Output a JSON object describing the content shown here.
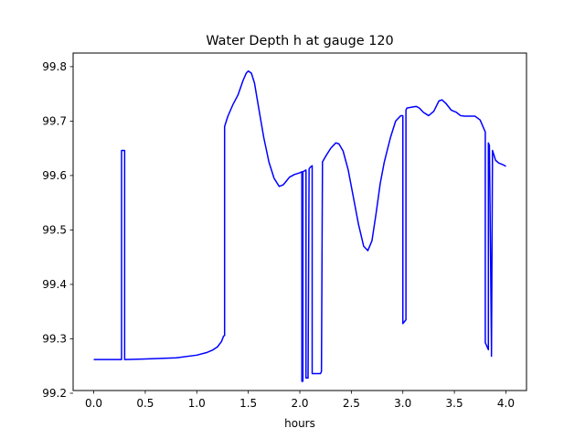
{
  "chart_data": {
    "type": "line",
    "title": "Water Depth h at gauge 120",
    "xlabel": "hours",
    "ylabel": "",
    "xlim": [
      -0.2,
      4.2
    ],
    "ylim": [
      99.205,
      99.825
    ],
    "xticks": [
      0.0,
      0.5,
      1.0,
      1.5,
      2.0,
      2.5,
      3.0,
      3.5,
      4.0
    ],
    "xtick_labels": [
      "0.0",
      "0.5",
      "1.0",
      "1.5",
      "2.0",
      "2.5",
      "3.0",
      "3.5",
      "4.0"
    ],
    "yticks": [
      99.2,
      99.3,
      99.4,
      99.5,
      99.6,
      99.7,
      99.8
    ],
    "ytick_labels": [
      "99.2",
      "99.3",
      "99.4",
      "99.5",
      "99.6",
      "99.7",
      "99.8"
    ],
    "grid": false,
    "series": [
      {
        "color": "#0000ff",
        "x": [
          0.0,
          0.26,
          0.27,
          0.27,
          0.3,
          0.3,
          0.31,
          0.5,
          0.8,
          1.0,
          1.1,
          1.15,
          1.2,
          1.24,
          1.26,
          1.27,
          1.27,
          1.3,
          1.35,
          1.4,
          1.45,
          1.48,
          1.5,
          1.53,
          1.56,
          1.6,
          1.65,
          1.7,
          1.75,
          1.8,
          1.84,
          1.87,
          1.9,
          1.95,
          2.0,
          2.02,
          2.02,
          2.03,
          2.03,
          2.06,
          2.06,
          2.08,
          2.09,
          2.1,
          2.12,
          2.12,
          2.14,
          2.2,
          2.21,
          2.22,
          2.25,
          2.3,
          2.35,
          2.38,
          2.42,
          2.47,
          2.52,
          2.57,
          2.62,
          2.66,
          2.7,
          2.74,
          2.78,
          2.82,
          2.88,
          2.93,
          2.98,
          3.0,
          3.0,
          3.03,
          3.03,
          3.04,
          3.1,
          3.13,
          3.16,
          3.2,
          3.25,
          3.3,
          3.35,
          3.38,
          3.42,
          3.47,
          3.52,
          3.56,
          3.6,
          3.65,
          3.7,
          3.75,
          3.8,
          3.8,
          3.83,
          3.83,
          3.84,
          3.86,
          3.86,
          3.87,
          3.88,
          3.9,
          3.93,
          3.97,
          4.0
        ],
        "y": [
          99.262,
          99.262,
          99.262,
          99.646,
          99.646,
          99.262,
          99.262,
          99.263,
          99.265,
          99.27,
          99.275,
          99.279,
          99.285,
          99.295,
          99.305,
          99.306,
          99.69,
          99.708,
          99.73,
          99.748,
          99.775,
          99.788,
          99.792,
          99.788,
          99.77,
          99.725,
          99.67,
          99.625,
          99.595,
          99.58,
          99.583,
          99.59,
          99.597,
          99.602,
          99.605,
          99.607,
          99.222,
          99.222,
          99.607,
          99.61,
          99.228,
          99.228,
          99.612,
          99.615,
          99.618,
          99.236,
          99.236,
          99.236,
          99.24,
          99.625,
          99.635,
          99.65,
          99.66,
          99.658,
          99.645,
          99.61,
          99.56,
          99.51,
          99.47,
          99.462,
          99.48,
          99.53,
          99.585,
          99.625,
          99.67,
          99.7,
          99.71,
          99.71,
          99.328,
          99.335,
          99.72,
          99.724,
          99.726,
          99.727,
          99.724,
          99.716,
          99.71,
          99.718,
          99.737,
          99.739,
          99.732,
          99.72,
          99.716,
          99.71,
          99.709,
          99.709,
          99.709,
          99.702,
          99.68,
          99.293,
          99.28,
          99.66,
          99.655,
          99.285,
          99.268,
          99.646,
          99.64,
          99.628,
          99.623,
          99.62,
          99.617
        ]
      }
    ]
  }
}
